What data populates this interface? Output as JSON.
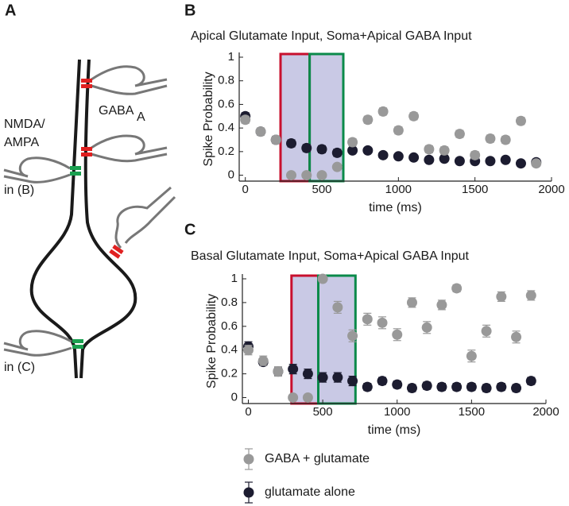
{
  "diagram": {
    "panel_label": "A",
    "labels": [
      "NMDA/",
      "AMPA",
      "GABA",
      "A",
      "in (B)",
      "in (C)"
    ]
  },
  "chart_data": [
    {
      "type": "scatter",
      "panel_label": "B",
      "title": "Apical Glutamate Input, Soma+Apical GABA Input",
      "x_label": "time (ms)",
      "y_label": "Spike Probability",
      "xlim": [
        -40,
        2000
      ],
      "ylim": [
        -0.05,
        1
      ],
      "xticks": [
        0,
        500,
        1000,
        1500,
        2000
      ],
      "yticks": [
        0,
        0.2,
        0.4,
        0.6,
        0.8,
        1
      ],
      "highlight_regions": [
        {
          "x": [
            230,
            420
          ],
          "color": "#c8102e"
        },
        {
          "x": [
            420,
            640
          ],
          "color": "#0a8a4a"
        }
      ],
      "x": [
        0,
        100,
        200,
        300,
        400,
        500,
        600,
        700,
        800,
        900,
        1000,
        1100,
        1200,
        1300,
        1400,
        1500,
        1600,
        1700,
        1800,
        1900
      ],
      "series": [
        {
          "name": "GABA + glutamate",
          "color": "#999999",
          "values": [
            0.47,
            0.37,
            0.3,
            0,
            0,
            0,
            0.07,
            0.28,
            0.47,
            0.54,
            0.38,
            0.5,
            0.22,
            0.21,
            0.35,
            0.17,
            0.31,
            0.3,
            0.46,
            0.1
          ],
          "errors": [
            0.03,
            0.03,
            0.03,
            0,
            0,
            0,
            0.02,
            0.03,
            0.03,
            0.03,
            0.03,
            0.03,
            0.03,
            0.03,
            0.03,
            0.03,
            0.03,
            0.03,
            0.03,
            0.02
          ]
        },
        {
          "name": "glutamate alone",
          "color": "#1c1c30",
          "values": [
            0.5,
            0.37,
            0.3,
            0.27,
            0.23,
            0.22,
            0.19,
            0.21,
            0.21,
            0.17,
            0.16,
            0.15,
            0.13,
            0.14,
            0.12,
            0.12,
            0.12,
            0.13,
            0.1,
            0.11
          ],
          "errors": [
            0.03,
            0.03,
            0.03,
            0.03,
            0.03,
            0.03,
            0.03,
            0.02,
            0.02,
            0.02,
            0.02,
            0.02,
            0.02,
            0.02,
            0.02,
            0.02,
            0.02,
            0.02,
            0.02,
            0.02
          ]
        }
      ]
    },
    {
      "type": "scatter",
      "panel_label": "C",
      "title": "Basal Glutamate Input, Soma+Apical GABA Input",
      "x_label": "time (ms)",
      "y_label": "Spike Probability",
      "xlim": [
        -40,
        2000
      ],
      "ylim": [
        -0.05,
        1
      ],
      "xticks": [
        0,
        500,
        1000,
        1500,
        2000
      ],
      "yticks": [
        0,
        0.2,
        0.4,
        0.6,
        0.8,
        1
      ],
      "highlight_regions": [
        {
          "x": [
            290,
            470
          ],
          "color": "#c8102e"
        },
        {
          "x": [
            470,
            720
          ],
          "color": "#0a8a4a"
        }
      ],
      "x": [
        0,
        100,
        200,
        300,
        400,
        500,
        600,
        700,
        800,
        900,
        1000,
        1100,
        1200,
        1300,
        1400,
        1500,
        1600,
        1700,
        1800,
        1900
      ],
      "series": [
        {
          "name": "GABA + glutamate",
          "color": "#999999",
          "values": [
            0.4,
            0.31,
            0.22,
            0,
            0,
            1,
            0.76,
            0.52,
            0.66,
            0.63,
            0.53,
            0.8,
            0.59,
            0.78,
            0.92,
            0.35,
            0.56,
            0.85,
            0.51,
            0.86
          ],
          "errors": [
            0.04,
            0.04,
            0.04,
            0,
            0,
            0,
            0.05,
            0.05,
            0.05,
            0.05,
            0.05,
            0.04,
            0.05,
            0.04,
            0.03,
            0.05,
            0.05,
            0.04,
            0.05,
            0.04
          ]
        },
        {
          "name": "glutamate alone",
          "color": "#1c1c30",
          "values": [
            0.43,
            0.3,
            0.22,
            0.24,
            0.2,
            0.17,
            0.17,
            0.14,
            0.09,
            0.14,
            0.11,
            0.08,
            0.1,
            0.09,
            0.09,
            0.09,
            0.08,
            0.09,
            0.08,
            0.14
          ],
          "errors": [
            0.04,
            0.03,
            0.03,
            0.04,
            0.04,
            0.04,
            0.04,
            0.04,
            0.03,
            0.03,
            0.03,
            0.03,
            0.03,
            0.03,
            0.03,
            0.03,
            0.03,
            0.03,
            0.03,
            0.03
          ]
        }
      ]
    }
  ]
}
